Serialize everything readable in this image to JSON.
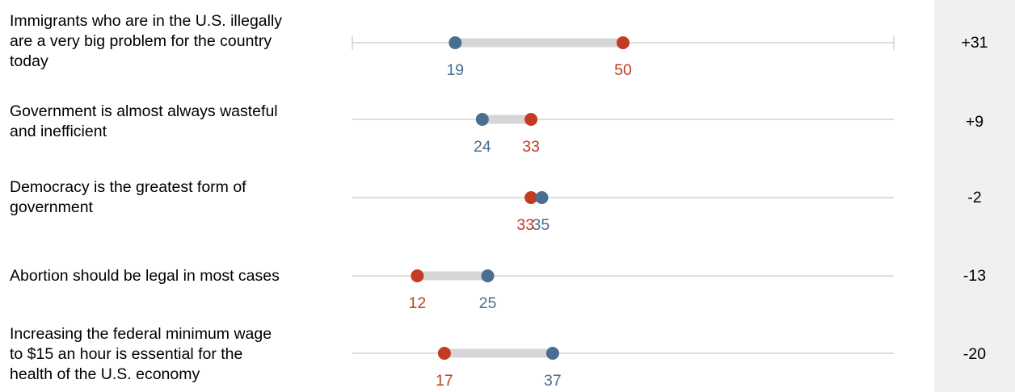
{
  "colors": {
    "rep": "#c23b22",
    "dem": "#4a6e8f",
    "track": "#d2d2d2",
    "range": "#d6d6d6",
    "diff_bg": "#f0f0f0"
  },
  "chart_data": {
    "type": "dot-range",
    "xlim": [
      0,
      100
    ],
    "rows": [
      {
        "label": "Immigrants who are in the U.S. illegally\nare a very big problem for the country\ntoday",
        "rep": 50,
        "dem": 19,
        "rep_label": "50",
        "dem_label": "19",
        "diff": "+31"
      },
      {
        "label": "Government is almost always wasteful\nand inefficient",
        "rep": 33,
        "dem": 24,
        "rep_label": "33",
        "dem_label": "24",
        "diff": "+9"
      },
      {
        "label": "Democracy is the greatest form of\ngovernment",
        "rep": 33,
        "dem": 35,
        "rep_label": "33",
        "dem_label": "35",
        "diff": "-2"
      },
      {
        "label": "Abortion should be legal in most cases",
        "rep": 12,
        "dem": 25,
        "rep_label": "12",
        "dem_label": "25",
        "diff": "-13"
      },
      {
        "label": "Increasing the federal minimum wage\nto $15 an hour is essential for the\nhealth of the U.S. economy",
        "rep": 17,
        "dem": 37,
        "rep_label": "17",
        "dem_label": "37",
        "diff": "-20"
      }
    ]
  }
}
